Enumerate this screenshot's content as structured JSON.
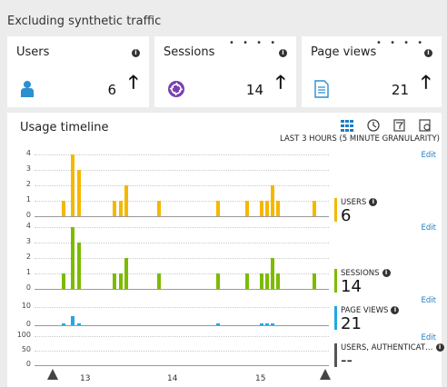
{
  "header": {
    "title": "Excluding synthetic traffic"
  },
  "tiles": [
    {
      "label": "Users",
      "value": "6",
      "icon": "user-icon",
      "dots": ""
    },
    {
      "label": "Sessions",
      "value": "14",
      "icon": "sessions-icon",
      "dots": "• • • •"
    },
    {
      "label": "Page views",
      "value": "21",
      "icon": "page-icon",
      "dots": "• • • •"
    }
  ],
  "timeline": {
    "title": "Usage timeline",
    "range_label": "LAST 3 HOURS (5 MINUTE GRANULARITY)",
    "edit_label": "Edit",
    "toolbar": [
      "grid-icon",
      "history-icon",
      "filter-icon",
      "settings-icon"
    ],
    "x_ticks": [
      "13",
      "14",
      "15"
    ],
    "colors": {
      "users": "#f5b700",
      "sessions": "#7cbb00",
      "pageviews": "#1fa9e0",
      "auth": "#555555"
    },
    "legends": [
      {
        "name": "USERS",
        "value": "6"
      },
      {
        "name": "SESSIONS",
        "value": "14"
      },
      {
        "name": "PAGE VIEWS",
        "value": "21"
      },
      {
        "name": "USERS, AUTHENTICAT…",
        "value": "--"
      }
    ],
    "y_ticks": {
      "users": [
        "4",
        "3",
        "2",
        "1",
        "0"
      ],
      "sessions": [
        "4",
        "3",
        "2",
        "1",
        "0"
      ],
      "pageviews": [
        "10",
        "0"
      ],
      "auth": [
        "100",
        "50",
        "0"
      ]
    }
  },
  "chart_data": [
    {
      "type": "bar",
      "series": [
        {
          "name": "USERS",
          "values": [
            1,
            4,
            3,
            1,
            1,
            2,
            1,
            1,
            1,
            1,
            1,
            2,
            1,
            1
          ]
        }
      ],
      "ylim": [
        0,
        4
      ]
    },
    {
      "type": "bar",
      "series": [
        {
          "name": "SESSIONS",
          "values": [
            1,
            4,
            3,
            1,
            1,
            2,
            1,
            1,
            1,
            1,
            1,
            2,
            1,
            1
          ]
        }
      ],
      "ylim": [
        0,
        4
      ]
    },
    {
      "type": "bar",
      "series": [
        {
          "name": "PAGE VIEWS",
          "values": [
            1,
            5,
            1,
            0,
            0,
            0,
            0,
            1,
            0,
            1,
            1,
            1,
            0,
            0
          ]
        }
      ],
      "ylim": [
        0,
        10
      ]
    },
    {
      "type": "bar",
      "series": [
        {
          "name": "USERS, AUTHENTICAT…",
          "values": []
        }
      ],
      "ylim": [
        0,
        100
      ]
    }
  ]
}
